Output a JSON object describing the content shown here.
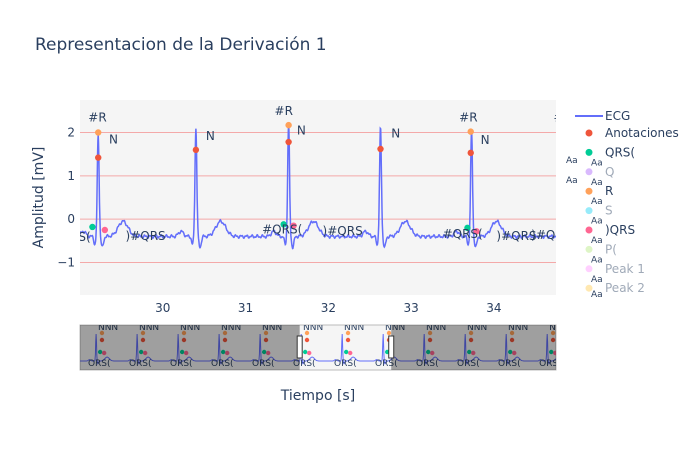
{
  "title": "Representacion de la Derivación 1",
  "chart_data": {
    "type": "line",
    "title": "Representacion de la Derivación 1",
    "xlabel": "Tiempo [s]",
    "ylabel": "Amplitud [mV]",
    "xlim": [
      29.0,
      34.75
    ],
    "ylim": [
      -1.75,
      2.75
    ],
    "x_ticks": [
      30,
      31,
      32,
      33,
      34
    ],
    "x_tick_labels": [
      "30",
      "31",
      "32",
      "33",
      "34"
    ],
    "y_ticks": [
      -1,
      0,
      1,
      2
    ],
    "y_tick_labels": [
      "−1",
      "0",
      "1",
      "2"
    ],
    "grid": true,
    "hlines": [
      -1,
      0,
      1,
      2
    ],
    "legend_position": "right",
    "ecg": {
      "name": "ECG",
      "color": "#636efa",
      "baseline": -0.4,
      "beats": [
        29.22,
        30.4,
        31.52,
        32.63,
        33.73
      ],
      "r_amplitudes": [
        1.95,
        2.1,
        2.2,
        2.1,
        2.05
      ]
    },
    "series": [
      {
        "name": "Anotaciones",
        "color": "#ef553b",
        "points": [
          [
            29.22,
            1.42
          ],
          [
            30.4,
            1.6
          ],
          [
            31.52,
            1.78
          ],
          [
            32.63,
            1.62
          ],
          [
            33.72,
            1.53
          ]
        ]
      },
      {
        "name": "QRS(",
        "color": "#00cc96",
        "points": [
          [
            29.15,
            -0.18
          ],
          [
            31.46,
            -0.12
          ],
          [
            33.68,
            -0.2
          ]
        ]
      },
      {
        "name": "Q",
        "color": "#ab63fa",
        "points": []
      },
      {
        "name": "R",
        "color": "#ffa15a",
        "points": [
          [
            29.22,
            2.0
          ],
          [
            31.52,
            2.17
          ],
          [
            33.72,
            2.02
          ]
        ]
      },
      {
        "name": "S",
        "color": "#19d3f3",
        "points": []
      },
      {
        "name": ")QRS",
        "color": "#ff6692",
        "points": [
          [
            29.3,
            -0.25
          ],
          [
            31.58,
            -0.15
          ],
          [
            33.79,
            -0.28
          ]
        ]
      },
      {
        "name": "P(",
        "color": "#b6e880",
        "points": []
      },
      {
        "name": "Peak 1",
        "color": "#ff97ff",
        "points": []
      },
      {
        "name": "Peak 2",
        "color": "#fecb52",
        "points": []
      }
    ],
    "annotations": [
      {
        "text": "#R",
        "x": 29.1,
        "y": 2.25
      },
      {
        "text": "N",
        "x": 29.35,
        "y": 1.75
      },
      {
        "text": "S(",
        "x": 28.98,
        "y": -0.5
      },
      {
        "text": ")#QRS",
        "x": 29.55,
        "y": -0.48
      },
      {
        "text": "N",
        "x": 30.52,
        "y": 1.83
      },
      {
        "text": "#R",
        "x": 31.35,
        "y": 2.4
      },
      {
        "text": "N",
        "x": 31.62,
        "y": 1.95
      },
      {
        "text": "#QRS(",
        "x": 31.2,
        "y": -0.33
      },
      {
        "text": ")#QRS",
        "x": 31.93,
        "y": -0.36
      },
      {
        "text": "N",
        "x": 32.76,
        "y": 1.88
      },
      {
        "text": "#R",
        "x": 33.58,
        "y": 2.25
      },
      {
        "text": "N",
        "x": 33.84,
        "y": 1.73
      },
      {
        "text": "#QRS(",
        "x": 33.38,
        "y": -0.43
      },
      {
        "text": ")#QRS",
        "x": 34.03,
        "y": -0.48
      },
      {
        "text": ")#QRS(",
        "x": 34.45,
        "y": -0.46
      },
      {
        "text": "#R",
        "x": 34.72,
        "y": 2.25
      }
    ],
    "rangeslider": {
      "xlim": [
        25.0,
        38.0
      ],
      "window": [
        31.0,
        33.5
      ]
    }
  },
  "legend_aa": "Aa"
}
